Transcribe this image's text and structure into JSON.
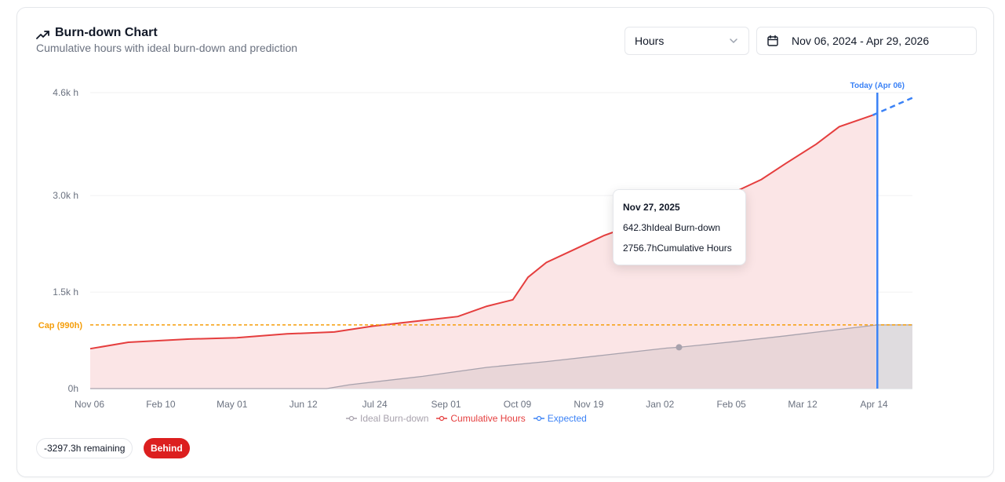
{
  "header": {
    "title": "Burn-down Chart",
    "subtitle": "Cumulative hours with ideal burn-down and prediction"
  },
  "controls": {
    "unit_select": "Hours",
    "date_range": "Nov 06, 2024 - Apr 29, 2026"
  },
  "tooltip": {
    "date": "Nov 27, 2025",
    "rows": [
      {
        "value": "642.3h",
        "label": "Ideal Burn-down"
      },
      {
        "value": "2756.7h",
        "label": "Cumulative Hours"
      }
    ]
  },
  "footer": {
    "remaining": "-3297.3h remaining",
    "status": "Behind"
  },
  "chart_data": {
    "type": "area",
    "x_start": "2024-11-06",
    "x_end": "2026-04-29",
    "x_tick_labels": [
      "Nov 06",
      "Feb 10",
      "May 01",
      "Jun 12",
      "Jul 24",
      "Sep 01",
      "Oct 09",
      "Nov 19",
      "Jan 02",
      "Feb 05",
      "Mar 12",
      "Apr 14"
    ],
    "y_tick_labels": [
      "0h",
      "1.5k h",
      "3.0k h",
      "4.6k h"
    ],
    "y_ticks": [
      0,
      1500,
      3000,
      4600
    ],
    "ylim": [
      0,
      4600
    ],
    "cap": {
      "value": 990,
      "label": "Cap (990h)",
      "color": "#f59e0b"
    },
    "today": {
      "date": "2026-04-06",
      "label": "Today (Apr 06)",
      "color": "#3b82f6"
    },
    "grid": true,
    "legend_position": "bottom",
    "series": [
      {
        "name": "Ideal Burn-down",
        "color": "#a8a2ad",
        "points": [
          [
            "2024-11-06",
            0
          ],
          [
            "2025-04-10",
            0
          ],
          [
            "2025-04-25",
            60
          ],
          [
            "2025-06-12",
            190
          ],
          [
            "2025-07-24",
            330
          ],
          [
            "2025-09-01",
            420
          ],
          [
            "2025-10-09",
            520
          ],
          [
            "2025-11-19",
            630
          ],
          [
            "2025-11-27",
            642.3
          ],
          [
            "2026-01-02",
            730
          ],
          [
            "2026-02-05",
            820
          ],
          [
            "2026-03-12",
            920
          ],
          [
            "2026-04-06",
            990
          ],
          [
            "2026-04-29",
            990
          ]
        ]
      },
      {
        "name": "Cumulative Hours",
        "color": "#e53e3e",
        "points": [
          [
            "2024-11-06",
            620
          ],
          [
            "2024-12-01",
            720
          ],
          [
            "2025-01-10",
            770
          ],
          [
            "2025-02-10",
            790
          ],
          [
            "2025-03-15",
            850
          ],
          [
            "2025-04-15",
            880
          ],
          [
            "2025-05-10",
            970
          ],
          [
            "2025-06-01",
            1030
          ],
          [
            "2025-06-20",
            1080
          ],
          [
            "2025-07-05",
            1120
          ],
          [
            "2025-07-24",
            1280
          ],
          [
            "2025-08-10",
            1380
          ],
          [
            "2025-08-20",
            1730
          ],
          [
            "2025-09-01",
            1960
          ],
          [
            "2025-09-20",
            2170
          ],
          [
            "2025-10-09",
            2380
          ],
          [
            "2025-10-30",
            2560
          ],
          [
            "2025-11-19",
            2730
          ],
          [
            "2025-11-27",
            2756.7
          ],
          [
            "2025-12-15",
            2880
          ],
          [
            "2026-01-02",
            3050
          ],
          [
            "2026-01-20",
            3250
          ],
          [
            "2026-02-05",
            3500
          ],
          [
            "2026-02-25",
            3800
          ],
          [
            "2026-03-12",
            4070
          ],
          [
            "2026-04-03",
            4250
          ]
        ]
      },
      {
        "name": "Expected",
        "color": "#3b82f6",
        "points": [
          [
            "2026-04-03",
            4250
          ],
          [
            "2026-04-29",
            4520
          ]
        ]
      }
    ]
  }
}
